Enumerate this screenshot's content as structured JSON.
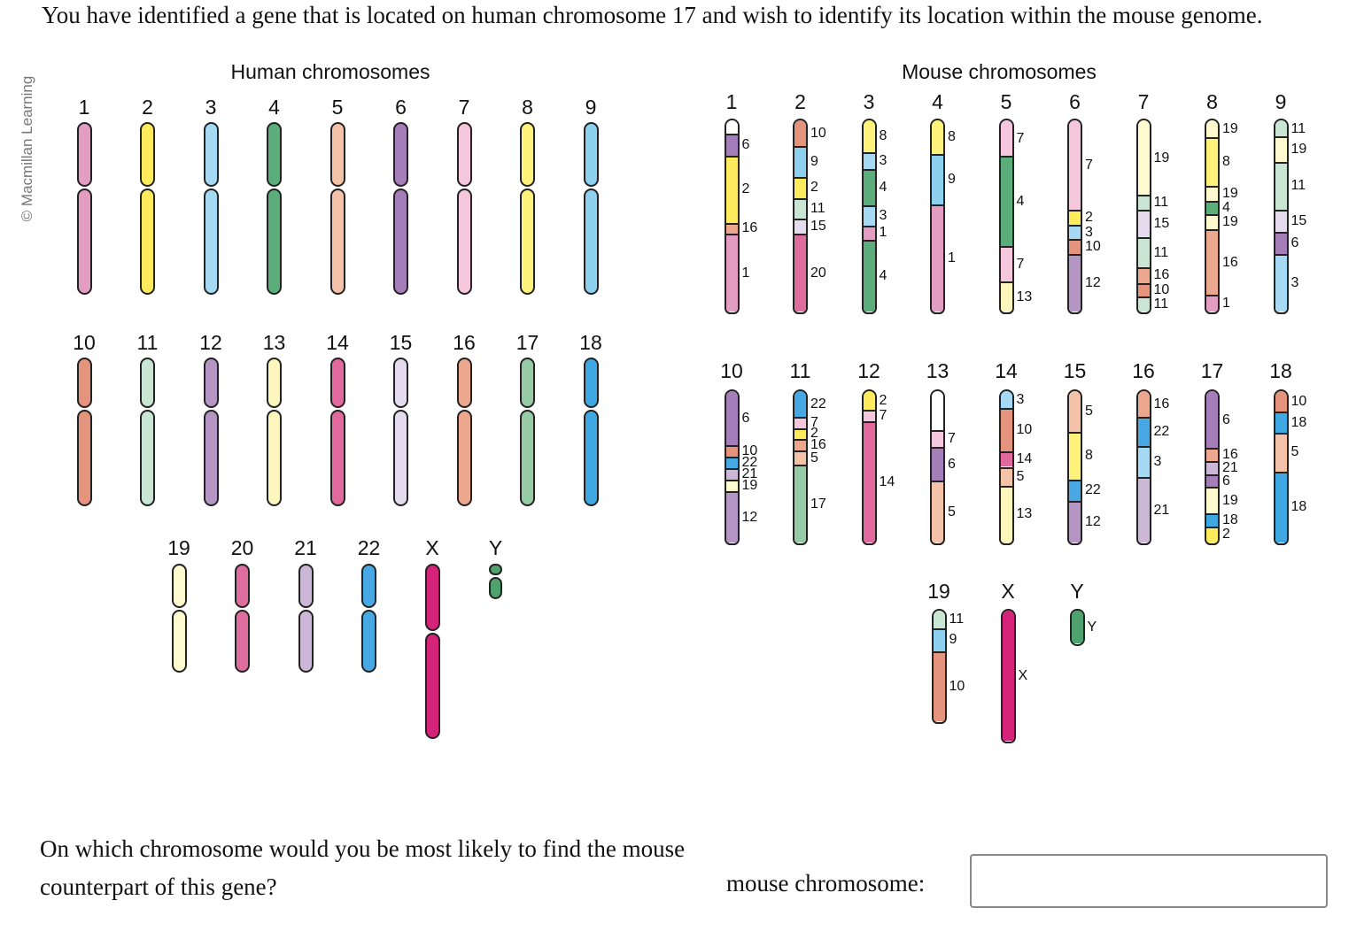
{
  "question": "You have identified a gene that is located on human chromosome 17 and wish to identify its location within the mouse genome.",
  "credit": "© Macmillan Learning",
  "human_title": "Human chromosomes",
  "mouse_title": "Mouse chromosomes",
  "prompt": "On which chromosome would you be most likely to find the mouse counterpart of this gene?",
  "answer_label": "mouse chromosome:",
  "answer_value": "",
  "colors": {
    "1": "#E39CC2",
    "2": "#FFEB5B",
    "3": "#A6D9F3",
    "4": "#5BAE7A",
    "5": "#F3C2A8",
    "6": "#A57DB8",
    "7": "#F4C7DC",
    "8": "#FFF27A",
    "9": "#8DD0EF",
    "10": "#E4937C",
    "11": "#C9E5D3",
    "12": "#B495C3",
    "13": "#FCF6BC",
    "14": "#E2699D",
    "15": "#E4DCEE",
    "16": "#EBA88E",
    "17": "#97CBA5",
    "18": "#3FA8E3",
    "19": "#FFF9CF",
    "20": "#DF6D9E",
    "21": "#CDB7D8",
    "22": "#48A8E3",
    "X": "#D6237A",
    "Y": "#4FA26D"
  },
  "human_chromosomes": [
    {
      "name": "1",
      "color": "1"
    },
    {
      "name": "2",
      "color": "2"
    },
    {
      "name": "3",
      "color": "3"
    },
    {
      "name": "4",
      "color": "4"
    },
    {
      "name": "5",
      "color": "5"
    },
    {
      "name": "6",
      "color": "6"
    },
    {
      "name": "7",
      "color": "7"
    },
    {
      "name": "8",
      "color": "8"
    },
    {
      "name": "9",
      "color": "9"
    },
    {
      "name": "10",
      "color": "10"
    },
    {
      "name": "11",
      "color": "11"
    },
    {
      "name": "12",
      "color": "12"
    },
    {
      "name": "13",
      "color": "13"
    },
    {
      "name": "14",
      "color": "14"
    },
    {
      "name": "15",
      "color": "15"
    },
    {
      "name": "16",
      "color": "16"
    },
    {
      "name": "17",
      "color": "17"
    },
    {
      "name": "18",
      "color": "18"
    },
    {
      "name": "19",
      "color": "19"
    },
    {
      "name": "20",
      "color": "20"
    },
    {
      "name": "21",
      "color": "21"
    },
    {
      "name": "22",
      "color": "22"
    },
    {
      "name": "X",
      "color": "X"
    },
    {
      "name": "Y",
      "color": "Y"
    }
  ],
  "mouse_chromosomes": [
    {
      "name": "1",
      "segments": [
        {
          "origin": "",
          "color": "#FFFFFF",
          "len": 1.2
        },
        {
          "origin": "6",
          "color": "6",
          "len": 2
        },
        {
          "origin": "2",
          "color": "2",
          "len": 6
        },
        {
          "origin": "16",
          "color": "16",
          "len": 1
        },
        {
          "origin": "1",
          "color": "1",
          "len": 7
        }
      ]
    },
    {
      "name": "2",
      "segments": [
        {
          "origin": "10",
          "color": "10",
          "len": 2
        },
        {
          "origin": "9",
          "color": "9",
          "len": 2.4
        },
        {
          "origin": "2",
          "color": "2",
          "len": 1.6
        },
        {
          "origin": "11",
          "color": "11",
          "len": 1.6
        },
        {
          "origin": "15",
          "color": "15",
          "len": 1.2
        },
        {
          "origin": "20",
          "color": "20",
          "len": 6
        }
      ]
    },
    {
      "name": "3",
      "segments": [
        {
          "origin": "8",
          "color": "8",
          "len": 2.2
        },
        {
          "origin": "3",
          "color": "3",
          "len": 1.2
        },
        {
          "origin": "4",
          "color": "4",
          "len": 2.5
        },
        {
          "origin": "3",
          "color": "3",
          "len": 1.4
        },
        {
          "origin": "1",
          "color": "1",
          "len": 1
        },
        {
          "origin": "4",
          "color": "4",
          "len": 5
        }
      ]
    },
    {
      "name": "4",
      "segments": [
        {
          "origin": "8",
          "color": "8",
          "len": 2.5
        },
        {
          "origin": "9",
          "color": "9",
          "len": 3.8
        },
        {
          "origin": "1",
          "color": "1",
          "len": 8
        }
      ]
    },
    {
      "name": "5",
      "segments": [
        {
          "origin": "7",
          "color": "7",
          "len": 2.6
        },
        {
          "origin": "4",
          "color": "4",
          "len": 6.6
        },
        {
          "origin": "7",
          "color": "7",
          "len": 2.6
        },
        {
          "origin": "13",
          "color": "13",
          "len": 2.2
        }
      ]
    },
    {
      "name": "6",
      "segments": [
        {
          "origin": "7",
          "color": "7",
          "len": 6.2
        },
        {
          "origin": "2",
          "color": "2",
          "len": 1
        },
        {
          "origin": "3",
          "color": "3",
          "len": 1
        },
        {
          "origin": "10",
          "color": "10",
          "len": 1
        },
        {
          "origin": "12",
          "color": "12",
          "len": 4
        }
      ]
    },
    {
      "name": "7",
      "segments": [
        {
          "origin": "19",
          "color": "19",
          "len": 4.4
        },
        {
          "origin": "11",
          "color": "11",
          "len": 0.9
        },
        {
          "origin": "15",
          "color": "15",
          "len": 1.6
        },
        {
          "origin": "11",
          "color": "11",
          "len": 1.8
        },
        {
          "origin": "16",
          "color": "16",
          "len": 0.9
        },
        {
          "origin": "10",
          "color": "10",
          "len": 0.8
        },
        {
          "origin": "11",
          "color": "11",
          "len": 0.9
        }
      ]
    },
    {
      "name": "8",
      "segments": [
        {
          "origin": "19",
          "color": "19",
          "len": 1
        },
        {
          "origin": "8",
          "color": "8",
          "len": 3
        },
        {
          "origin": "19",
          "color": "19",
          "len": 0.9
        },
        {
          "origin": "4",
          "color": "4",
          "len": 0.8
        },
        {
          "origin": "19",
          "color": "19",
          "len": 0.9
        },
        {
          "origin": "16",
          "color": "16",
          "len": 4
        },
        {
          "origin": "1",
          "color": "1",
          "len": 1
        }
      ]
    },
    {
      "name": "9",
      "segments": [
        {
          "origin": "11",
          "color": "11",
          "len": 1
        },
        {
          "origin": "19",
          "color": "19",
          "len": 1.6
        },
        {
          "origin": "11",
          "color": "11",
          "len": 3
        },
        {
          "origin": "15",
          "color": "15",
          "len": 1.4
        },
        {
          "origin": "6",
          "color": "6",
          "len": 1.4
        },
        {
          "origin": "3",
          "color": "3",
          "len": 3.6
        }
      ]
    },
    {
      "name": "10",
      "segments": [
        {
          "origin": "6",
          "color": "6",
          "len": 3.7
        },
        {
          "origin": "10",
          "color": "10",
          "len": 0.8
        },
        {
          "origin": "22",
          "color": "22",
          "len": 0.8
        },
        {
          "origin": "21",
          "color": "21",
          "len": 0.8
        },
        {
          "origin": "19",
          "color": "19",
          "len": 0.8
        },
        {
          "origin": "12",
          "color": "12",
          "len": 3.5
        }
      ]
    },
    {
      "name": "11",
      "segments": [
        {
          "origin": "22",
          "color": "22",
          "len": 1.8
        },
        {
          "origin": "7",
          "color": "7",
          "len": 0.8
        },
        {
          "origin": "2",
          "color": "2",
          "len": 0.8
        },
        {
          "origin": "16",
          "color": "16",
          "len": 0.8
        },
        {
          "origin": "5",
          "color": "5",
          "len": 1
        },
        {
          "origin": "17",
          "color": "17",
          "len": 5.5
        }
      ]
    },
    {
      "name": "12",
      "segments": [
        {
          "origin": "2",
          "color": "2",
          "len": 1.5
        },
        {
          "origin": "7",
          "color": "7",
          "len": 1
        },
        {
          "origin": "14",
          "color": "14",
          "len": 10
        }
      ]
    },
    {
      "name": "13",
      "segments": [
        {
          "origin": "",
          "color": "#FFFFFF",
          "len": 3.5
        },
        {
          "origin": "7",
          "color": "7",
          "len": 1.5
        },
        {
          "origin": "6",
          "color": "6",
          "len": 3
        },
        {
          "origin": "5",
          "color": "5",
          "len": 5.5
        }
      ]
    },
    {
      "name": "14",
      "segments": [
        {
          "origin": "3",
          "color": "3",
          "len": 1.3
        },
        {
          "origin": "10",
          "color": "10",
          "len": 3.5
        },
        {
          "origin": "14",
          "color": "14",
          "len": 1.2
        },
        {
          "origin": "5",
          "color": "5",
          "len": 1.5
        },
        {
          "origin": "13",
          "color": "13",
          "len": 4.5
        }
      ]
    },
    {
      "name": "15",
      "segments": [
        {
          "origin": "5",
          "color": "5",
          "len": 3.4
        },
        {
          "origin": "8",
          "color": "8",
          "len": 4
        },
        {
          "origin": "22",
          "color": "22",
          "len": 1.8
        },
        {
          "origin": "12",
          "color": "12",
          "len": 3.5
        }
      ]
    },
    {
      "name": "16",
      "segments": [
        {
          "origin": "16",
          "color": "16",
          "len": 2
        },
        {
          "origin": "22",
          "color": "22",
          "len": 2.2
        },
        {
          "origin": "3",
          "color": "3",
          "len": 2.4
        },
        {
          "origin": "21",
          "color": "21",
          "len": 5
        }
      ]
    },
    {
      "name": "17",
      "segments": [
        {
          "origin": "6",
          "color": "6",
          "len": 3.5
        },
        {
          "origin": "16",
          "color": "16",
          "len": 0.8
        },
        {
          "origin": "21",
          "color": "21",
          "len": 0.8
        },
        {
          "origin": "6",
          "color": "6",
          "len": 0.8
        },
        {
          "origin": "19",
          "color": "19",
          "len": 1.6
        },
        {
          "origin": "18",
          "color": "18",
          "len": 0.8
        },
        {
          "origin": "2",
          "color": "2",
          "len": 1
        }
      ]
    },
    {
      "name": "18",
      "segments": [
        {
          "origin": "10",
          "color": "10",
          "len": 1.6
        },
        {
          "origin": "18",
          "color": "18",
          "len": 1.6
        },
        {
          "origin": "5",
          "color": "5",
          "len": 3
        },
        {
          "origin": "18",
          "color": "18",
          "len": 5.5
        }
      ]
    },
    {
      "name": "19",
      "segments": [
        {
          "origin": "11",
          "color": "11",
          "len": 1.5
        },
        {
          "origin": "9",
          "color": "9",
          "len": 2
        },
        {
          "origin": "10",
          "color": "10",
          "len": 6
        }
      ]
    },
    {
      "name": "X",
      "segments": [
        {
          "origin": "X",
          "color": "X",
          "len": 1
        }
      ]
    },
    {
      "name": "Y",
      "segments": [
        {
          "origin": "Y",
          "color": "Y",
          "len": 1
        }
      ]
    }
  ]
}
